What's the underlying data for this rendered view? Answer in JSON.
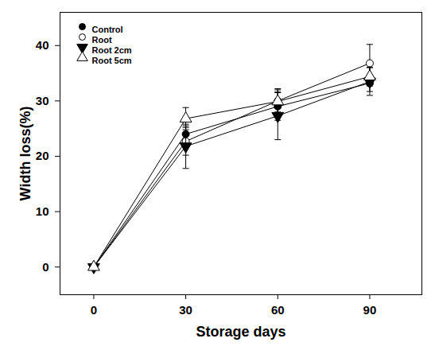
{
  "chart_data": {
    "type": "line",
    "xlabel": "Storage days",
    "ylabel": "Width loss(%)",
    "x": [
      0,
      30,
      60,
      90
    ],
    "xlim": [
      -11,
      107
    ],
    "xticks": [
      0,
      30,
      60,
      90
    ],
    "ylim": [
      -5,
      46
    ],
    "yticks": [
      0,
      10,
      20,
      30,
      40
    ],
    "legend": "upper left",
    "series": [
      {
        "name": "Control",
        "color": "#000000",
        "marker": "circle",
        "values": [
          0,
          24,
          29,
          33.2
        ],
        "errors": [
          0,
          1.5,
          2.5,
          1.5
        ]
      },
      {
        "name": "Root",
        "color": "#000000",
        "marker": "circle-open",
        "values": [
          0,
          22.7,
          30,
          36.8
        ],
        "errors": [
          0,
          2.5,
          2,
          3.4
        ]
      },
      {
        "name": "Root 2cm",
        "color": "#000000",
        "marker": "triangle-down",
        "values": [
          0,
          21.8,
          27.3,
          33.5
        ],
        "errors": [
          0,
          4,
          4.3,
          2.5
        ]
      },
      {
        "name": "Root 5cm",
        "color": "#000000",
        "marker": "triangle-open",
        "values": [
          0,
          26.8,
          29.9,
          34.4
        ],
        "errors": [
          0,
          2,
          2.3,
          1.7
        ]
      }
    ]
  }
}
